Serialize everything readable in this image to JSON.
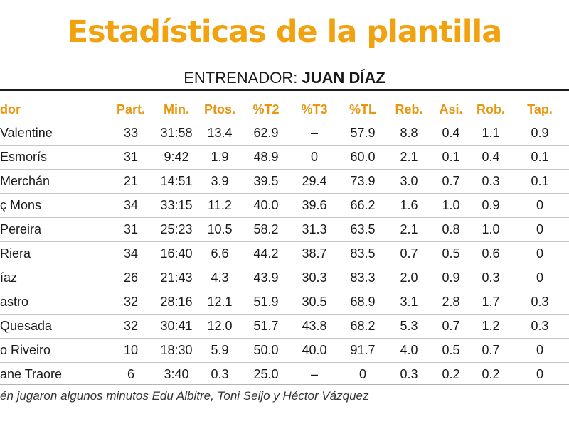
{
  "title": "Estadísticas de la plantilla",
  "coach": {
    "label": "ENTRENADOR:",
    "name": "JUAN DÍAZ"
  },
  "table": {
    "headers": [
      "dor",
      "Part.",
      "Min.",
      "Ptos.",
      "%T2",
      "%T3",
      "%TL",
      "Reb.",
      "Asi.",
      "Rob.",
      "Tap."
    ],
    "rows": [
      [
        "Valentine",
        "33",
        "31:58",
        "13.4",
        "62.9",
        "–",
        "57.9",
        "8.8",
        "0.4",
        "1.1",
        "0.9"
      ],
      [
        "Esmorís",
        "31",
        "9:42",
        "1.9",
        "48.9",
        "0",
        "60.0",
        "2.1",
        "0.1",
        "0.4",
        "0.1"
      ],
      [
        "Merchán",
        "21",
        "14:51",
        "3.9",
        "39.5",
        "29.4",
        "73.9",
        "3.0",
        "0.7",
        "0.3",
        "0.1"
      ],
      [
        "ç Mons",
        "34",
        "33:15",
        "11.2",
        "40.0",
        "39.6",
        "66.2",
        "1.6",
        "1.0",
        "0.9",
        "0"
      ],
      [
        "Pereira",
        "31",
        "25:23",
        "10.5",
        "58.2",
        "31.3",
        "63.5",
        "2.1",
        "0.8",
        "1.0",
        "0"
      ],
      [
        "Riera",
        "34",
        "16:40",
        "6.6",
        "44.2",
        "38.7",
        "83.5",
        "0.7",
        "0.5",
        "0.6",
        "0"
      ],
      [
        "íaz",
        "26",
        "21:43",
        "4.3",
        "43.9",
        "30.3",
        "83.3",
        "2.0",
        "0.9",
        "0.3",
        "0"
      ],
      [
        "astro",
        "32",
        "28:16",
        "12.1",
        "51.9",
        "30.5",
        "68.9",
        "3.1",
        "2.8",
        "1.7",
        "0.3"
      ],
      [
        "Quesada",
        "32",
        "30:41",
        "12.0",
        "51.7",
        "43.8",
        "68.2",
        "5.3",
        "0.7",
        "1.2",
        "0.3"
      ],
      [
        "o Riveiro",
        "10",
        "18:30",
        "5.9",
        "50.0",
        "40.0",
        "91.7",
        "4.0",
        "0.5",
        "0.7",
        "0"
      ],
      [
        "ane Traore",
        "6",
        "3:40",
        "0.3",
        "25.0",
        "–",
        "0",
        "0.3",
        "0.2",
        "0.2",
        "0"
      ]
    ]
  },
  "footnote": "én jugaron algunos minutos Edu Albitre, Toni Seijo y Héctor Vázquez",
  "colors": {
    "title": "#f0a20f",
    "header": "#e8960f",
    "text": "#1a1a1a"
  }
}
